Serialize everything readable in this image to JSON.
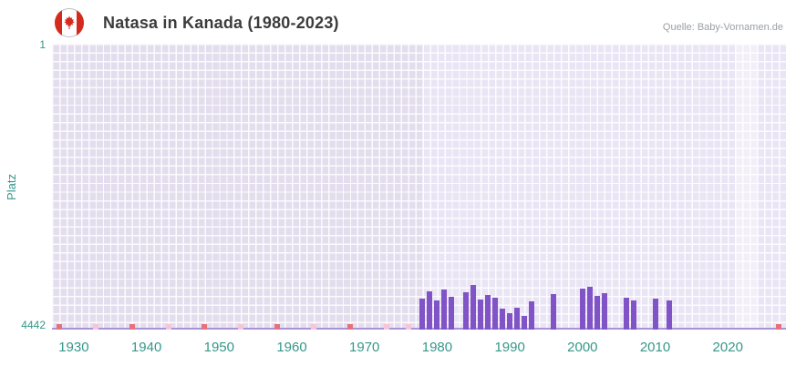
{
  "header": {
    "title": "Natasa in Kanada (1980-2023)",
    "source": "Quelle: Baby-Vornamen.de",
    "flag": "canada-flag-icon"
  },
  "chart_data": {
    "type": "bar",
    "title": "Natasa in Kanada (1980-2023)",
    "xlabel": "",
    "ylabel": "Platz",
    "y_axis": {
      "min": 1,
      "max": 4442,
      "inverted": true,
      "top_label": "1",
      "bottom_label": "4442"
    },
    "x_axis": {
      "range": [
        1927,
        2028
      ],
      "ticks": [
        1930,
        1940,
        1950,
        1960,
        1970,
        1980,
        1990,
        2000,
        2010,
        2020
      ]
    },
    "bars": [
      {
        "year": 1978,
        "rank": 3960
      },
      {
        "year": 1979,
        "rank": 3850
      },
      {
        "year": 1980,
        "rank": 3990
      },
      {
        "year": 1981,
        "rank": 3820
      },
      {
        "year": 1982,
        "rank": 3930
      },
      {
        "year": 1984,
        "rank": 3860
      },
      {
        "year": 1985,
        "rank": 3750
      },
      {
        "year": 1986,
        "rank": 3980
      },
      {
        "year": 1987,
        "rank": 3900
      },
      {
        "year": 1988,
        "rank": 3950
      },
      {
        "year": 1989,
        "rank": 4120
      },
      {
        "year": 1990,
        "rank": 4180
      },
      {
        "year": 1991,
        "rank": 4100
      },
      {
        "year": 1992,
        "rank": 4230
      },
      {
        "year": 1993,
        "rank": 4000
      },
      {
        "year": 1996,
        "rank": 3890
      },
      {
        "year": 2000,
        "rank": 3800
      },
      {
        "year": 2001,
        "rank": 3780
      },
      {
        "year": 2002,
        "rank": 3920
      },
      {
        "year": 2003,
        "rank": 3870
      },
      {
        "year": 2006,
        "rank": 3940
      },
      {
        "year": 2007,
        "rank": 3990
      },
      {
        "year": 2010,
        "rank": 3960
      },
      {
        "year": 2012,
        "rank": 3990
      }
    ],
    "markers": [
      {
        "year": 1928,
        "tone": "strong"
      },
      {
        "year": 1933,
        "tone": "light"
      },
      {
        "year": 1938,
        "tone": "strong"
      },
      {
        "year": 1943,
        "tone": "light"
      },
      {
        "year": 1948,
        "tone": "strong"
      },
      {
        "year": 1953,
        "tone": "light"
      },
      {
        "year": 1958,
        "tone": "strong"
      },
      {
        "year": 1963,
        "tone": "light"
      },
      {
        "year": 1968,
        "tone": "strong"
      },
      {
        "year": 1973,
        "tone": "light"
      },
      {
        "year": 1976,
        "tone": "light"
      },
      {
        "year": 2027,
        "tone": "strong"
      }
    ],
    "bands": [
      {
        "from": 1978,
        "to": 2021,
        "color": "#eae5f5"
      },
      {
        "from": 2021,
        "to": 2024,
        "color": "#f2eff9"
      },
      {
        "from": 2024,
        "to": 2028,
        "color": "#eae5f5"
      }
    ],
    "colors": {
      "bar": "#8053c7",
      "baseline": "#aa92d8",
      "plot_bg": "#e3ddee",
      "marker_strong": "#e4717e",
      "marker_light": "#f5c6da",
      "axis_text": "#35978a",
      "flag_red": "#d52b1e"
    },
    "legend": "none",
    "grid": true
  }
}
